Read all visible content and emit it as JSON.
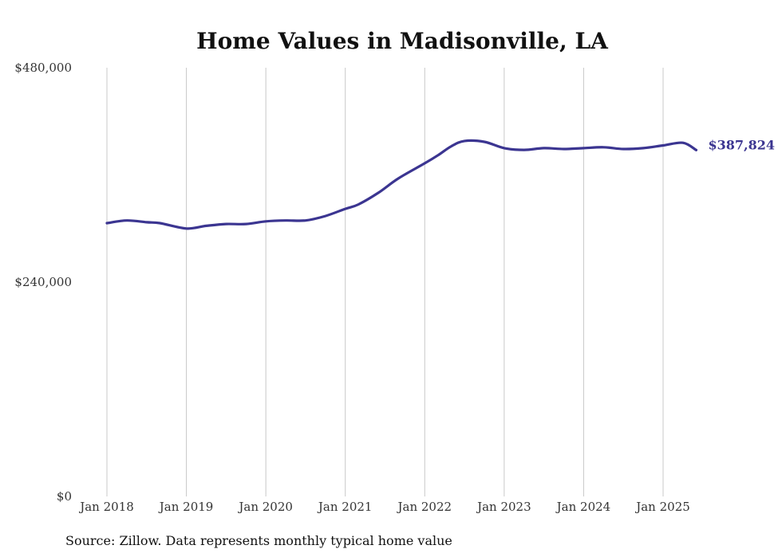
{
  "chart_data": {
    "type": "line",
    "title": "Home Values in Madisonville, LA",
    "source": "Source: Zillow. Data represents monthly typical home value",
    "ylim": [
      0,
      480000
    ],
    "y_ticks": [
      {
        "value": 0,
        "label": "$0"
      },
      {
        "value": 240000,
        "label": "$240,000"
      },
      {
        "value": 480000,
        "label": "$480,000"
      }
    ],
    "x_ticks": [
      {
        "value": "2018-01",
        "label": "Jan 2018"
      },
      {
        "value": "2019-01",
        "label": "Jan 2019"
      },
      {
        "value": "2020-01",
        "label": "Jan 2020"
      },
      {
        "value": "2021-01",
        "label": "Jan 2021"
      },
      {
        "value": "2022-01",
        "label": "Jan 2022"
      },
      {
        "value": "2023-01",
        "label": "Jan 2023"
      },
      {
        "value": "2024-01",
        "label": "Jan 2024"
      },
      {
        "value": "2025-01",
        "label": "Jan 2025"
      }
    ],
    "grid": {
      "vertical": true,
      "horizontal": false
    },
    "line_color": "#3b3591",
    "end_label": "$387,824",
    "series": [
      {
        "x": [
          "2018-01",
          "2018-04",
          "2018-07",
          "2018-09",
          "2019-01",
          "2019-04",
          "2019-07",
          "2019-10",
          "2020-01",
          "2020-04",
          "2020-07",
          "2020-10",
          "2021-01",
          "2021-03",
          "2021-06",
          "2021-09",
          "2022-01",
          "2022-03",
          "2022-05",
          "2022-07",
          "2022-10",
          "2023-01",
          "2023-04",
          "2023-07",
          "2023-10",
          "2024-01",
          "2024-04",
          "2024-07",
          "2024-10",
          "2025-01",
          "2025-04",
          "2025-06"
        ],
        "values": [
          306000,
          309000,
          307000,
          306000,
          300000,
          303000,
          305000,
          305000,
          308000,
          309000,
          309000,
          314000,
          322000,
          327000,
          340000,
          356000,
          373000,
          382000,
          392000,
          398000,
          397000,
          390000,
          388000,
          390000,
          389000,
          390000,
          391000,
          389000,
          390000,
          393000,
          396000,
          387824
        ]
      }
    ]
  }
}
